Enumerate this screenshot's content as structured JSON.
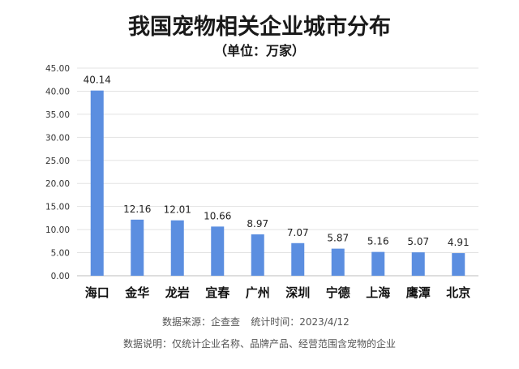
{
  "chart_data": {
    "type": "bar",
    "title": "我国宠物相关企业城市分布",
    "subtitle": "（单位：万家）",
    "categories": [
      "海口",
      "金华",
      "龙岩",
      "宜春",
      "广州",
      "深圳",
      "宁德",
      "上海",
      "鹰潭",
      "北京"
    ],
    "values": [
      40.14,
      12.16,
      12.01,
      10.66,
      8.97,
      7.07,
      5.87,
      5.16,
      5.07,
      4.91
    ],
    "value_labels": [
      "40.14",
      "12.16",
      "12.01",
      "10.66",
      "8.97",
      "7.07",
      "5.87",
      "5.16",
      "5.07",
      "4.91"
    ],
    "ylim": [
      0,
      45
    ],
    "yticks": [
      "0.00",
      "5.00",
      "10.00",
      "15.00",
      "20.00",
      "25.00",
      "30.00",
      "35.00",
      "40.00",
      "45.00"
    ],
    "ytick_values": [
      0,
      5,
      10,
      15,
      20,
      25,
      30,
      35,
      40,
      45
    ],
    "grid": true,
    "bar_color": "#5B8EE0",
    "xlabel": "",
    "ylabel": ""
  },
  "footer": {
    "source": "数据来源：企查查",
    "stat_time": "统计时间：2023/4/12",
    "note": "数据说明：仅统计企业名称、品牌产品、经营范围含宠物的企业"
  }
}
